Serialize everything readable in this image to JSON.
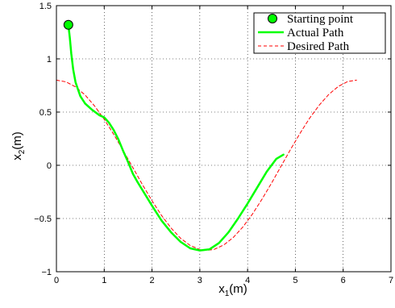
{
  "chart_data": {
    "type": "line",
    "title": "",
    "xlabel": "x",
    "xlabel_sub": "1",
    "xlabel_unit": "(m)",
    "ylabel": "x",
    "ylabel_sub": "2",
    "ylabel_unit": "(m)",
    "xlim": [
      0,
      7
    ],
    "ylim": [
      -1,
      1.5
    ],
    "xticks": [
      0,
      1,
      2,
      3,
      4,
      5,
      6,
      7
    ],
    "yticks": [
      -1,
      -0.5,
      0,
      0.5,
      1,
      1.5
    ],
    "xtick_labels": [
      "0",
      "1",
      "2",
      "3",
      "4",
      "5",
      "6",
      "7"
    ],
    "ytick_labels": [
      "−1",
      "−0.5",
      "0",
      "0.5",
      "1",
      "1.5"
    ],
    "grid": true,
    "legend_position": "top-right",
    "series": [
      {
        "name": "Starting point",
        "kind": "marker",
        "color": "#00ff00",
        "x": [
          0.25
        ],
        "y": [
          1.32
        ]
      },
      {
        "name": "Actual Path",
        "kind": "solid",
        "color": "#00ff00",
        "x": [
          0.25,
          0.28,
          0.31,
          0.35,
          0.4,
          0.5,
          0.6,
          0.75,
          0.9,
          1.0,
          1.1,
          1.2,
          1.3,
          1.4,
          1.5,
          1.6,
          1.7,
          1.85,
          2.0,
          2.2,
          2.4,
          2.6,
          2.8,
          3.0,
          3.2,
          3.4,
          3.6,
          3.8,
          4.0,
          4.2,
          4.4,
          4.6,
          4.75
        ],
        "y": [
          1.32,
          1.2,
          1.05,
          0.9,
          0.78,
          0.65,
          0.58,
          0.52,
          0.47,
          0.45,
          0.4,
          0.33,
          0.24,
          0.13,
          0.03,
          -0.08,
          -0.16,
          -0.27,
          -0.38,
          -0.52,
          -0.63,
          -0.72,
          -0.78,
          -0.8,
          -0.79,
          -0.73,
          -0.63,
          -0.5,
          -0.36,
          -0.21,
          -0.06,
          0.06,
          0.1
        ]
      },
      {
        "name": "Desired Path",
        "kind": "dashed",
        "color": "#ff0000",
        "x": [
          0.0,
          0.2,
          0.4,
          0.6,
          0.8,
          1.0,
          1.2,
          1.4,
          1.6,
          1.8,
          2.0,
          2.2,
          2.4,
          2.6,
          2.8,
          3.0,
          3.14,
          3.3,
          3.5,
          3.7,
          3.9,
          4.1,
          4.3,
          4.5,
          4.7,
          4.9,
          5.1,
          5.3,
          5.5,
          5.7,
          5.9,
          6.1,
          6.28
        ],
        "y": [
          0.8,
          0.784,
          0.737,
          0.66,
          0.557,
          0.432,
          0.29,
          0.136,
          -0.023,
          -0.182,
          -0.333,
          -0.471,
          -0.59,
          -0.686,
          -0.754,
          -0.792,
          -0.8,
          -0.79,
          -0.749,
          -0.678,
          -0.58,
          -0.459,
          -0.32,
          -0.168,
          -0.009,
          0.15,
          0.303,
          0.444,
          0.566,
          0.667,
          0.742,
          0.788,
          0.8
        ]
      }
    ]
  }
}
